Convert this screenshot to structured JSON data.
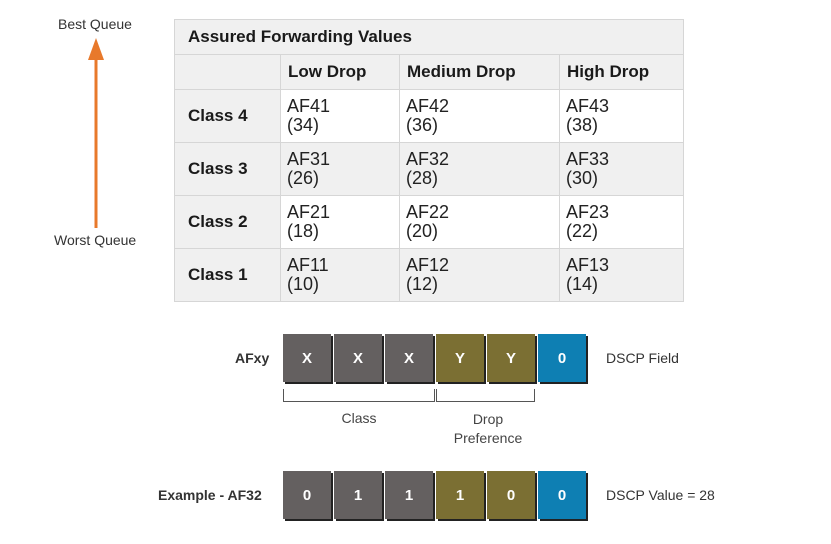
{
  "queue": {
    "best": "Best Queue",
    "worst": "Worst Queue",
    "arrow_color": "#e8792b"
  },
  "table": {
    "title": "Assured Forwarding Values",
    "columns": [
      "Low Drop",
      "Medium Drop",
      "High Drop"
    ],
    "rows": [
      {
        "label": "Class 4",
        "cells": [
          [
            "AF41",
            "(34)"
          ],
          [
            "AF42",
            "(36)"
          ],
          [
            "AF43",
            "(38)"
          ]
        ]
      },
      {
        "label": "Class 3",
        "cells": [
          [
            "AF31",
            "(26)"
          ],
          [
            "AF32",
            "(28)"
          ],
          [
            "AF33",
            "(30)"
          ]
        ]
      },
      {
        "label": "Class 2",
        "cells": [
          [
            "AF21",
            "(18)"
          ],
          [
            "AF22",
            "(20)"
          ],
          [
            "AF23",
            "(22)"
          ]
        ]
      },
      {
        "label": "Class 1",
        "cells": [
          [
            "AF11",
            "(10)"
          ],
          [
            "AF12",
            "(12)"
          ],
          [
            "AF13",
            "(14)"
          ]
        ]
      }
    ]
  },
  "afxy": {
    "label": "AFxy",
    "bits": [
      "X",
      "X",
      "X",
      "Y",
      "Y",
      "0"
    ],
    "right_label": "DSCP Field"
  },
  "brackets": {
    "class": "Class",
    "drop_line1": "Drop",
    "drop_line2": "Preference"
  },
  "example": {
    "label": "Example - AF32",
    "bits": [
      "0",
      "1",
      "1",
      "1",
      "0",
      "0"
    ],
    "right_label": "DSCP Value = 28"
  },
  "colors": {
    "class_bits": "#646060",
    "drop_bits": "#7b6f33",
    "last_bit": "#0e7fb3"
  }
}
